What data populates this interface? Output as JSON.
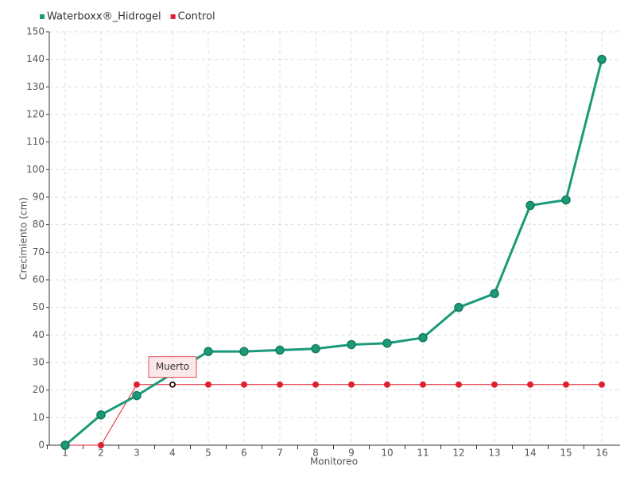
{
  "chart_data": {
    "type": "line",
    "categories": [
      "1",
      "2",
      "3",
      "4",
      "5",
      "6",
      "7",
      "8",
      "9",
      "10",
      "11",
      "12",
      "13",
      "14",
      "15",
      "16"
    ],
    "series": [
      {
        "name": "Waterboxx®_Hidrogel",
        "color": "#1a9a78",
        "values": [
          0,
          11,
          18,
          26,
          34,
          34,
          34.5,
          35,
          36.5,
          37,
          39,
          50,
          55,
          87,
          89,
          140
        ]
      },
      {
        "name": "Control",
        "color": "#e0202f",
        "values": [
          0,
          0,
          22,
          22,
          22,
          22,
          22,
          22,
          22,
          22,
          22,
          22,
          22,
          22,
          22,
          22
        ]
      }
    ],
    "xlabel": "Monitoreo",
    "ylabel": "Crecimiento (cm)",
    "ylim": [
      0,
      150
    ],
    "yticks": [
      0,
      10,
      20,
      30,
      40,
      50,
      60,
      70,
      80,
      90,
      100,
      110,
      120,
      130,
      140,
      150
    ],
    "annotation": "Muerto",
    "grid": true,
    "legend": "top-left"
  }
}
